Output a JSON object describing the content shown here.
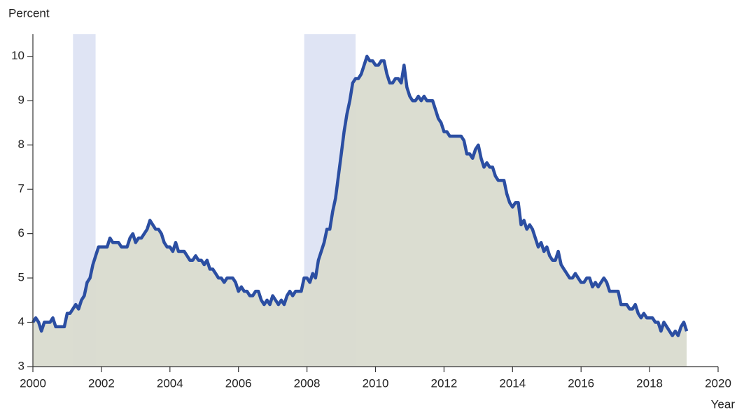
{
  "chart_data": {
    "type": "area-line",
    "ylabel": "Percent",
    "xlabel": "Year",
    "color": "#2b4ea2",
    "fill_color": "#d9dbcf",
    "shade_color": "#dfe4f4",
    "shaded_regions": [
      [
        2001.17,
        2001.83
      ],
      [
        2007.92,
        2009.42
      ]
    ],
    "xlim": [
      2000,
      2020
    ],
    "xticks": [
      2000,
      2002,
      2004,
      2006,
      2008,
      2010,
      2012,
      2014,
      2016,
      2018,
      2020
    ],
    "ylim": [
      3,
      10.5
    ],
    "yticks": [
      3,
      4,
      5,
      6,
      7,
      8,
      9,
      10
    ],
    "x": [
      2000,
      2000.083,
      2000.167,
      2000.25,
      2000.333,
      2000.417,
      2000.5,
      2000.583,
      2000.667,
      2000.75,
      2000.833,
      2000.917,
      2001,
      2001.083,
      2001.167,
      2001.25,
      2001.333,
      2001.417,
      2001.5,
      2001.583,
      2001.667,
      2001.75,
      2001.833,
      2001.917,
      2002,
      2002.083,
      2002.167,
      2002.25,
      2002.333,
      2002.417,
      2002.5,
      2002.583,
      2002.667,
      2002.75,
      2002.833,
      2002.917,
      2003,
      2003.083,
      2003.167,
      2003.25,
      2003.333,
      2003.417,
      2003.5,
      2003.583,
      2003.667,
      2003.75,
      2003.833,
      2003.917,
      2004,
      2004.083,
      2004.167,
      2004.25,
      2004.333,
      2004.417,
      2004.5,
      2004.583,
      2004.667,
      2004.75,
      2004.833,
      2004.917,
      2005,
      2005.083,
      2005.167,
      2005.25,
      2005.333,
      2005.417,
      2005.5,
      2005.583,
      2005.667,
      2005.75,
      2005.833,
      2005.917,
      2006,
      2006.083,
      2006.167,
      2006.25,
      2006.333,
      2006.417,
      2006.5,
      2006.583,
      2006.667,
      2006.75,
      2006.833,
      2006.917,
      2007,
      2007.083,
      2007.167,
      2007.25,
      2007.333,
      2007.417,
      2007.5,
      2007.583,
      2007.667,
      2007.75,
      2007.833,
      2007.917,
      2008,
      2008.083,
      2008.167,
      2008.25,
      2008.333,
      2008.417,
      2008.5,
      2008.583,
      2008.667,
      2008.75,
      2008.833,
      2008.917,
      2009,
      2009.083,
      2009.167,
      2009.25,
      2009.333,
      2009.417,
      2009.5,
      2009.583,
      2009.667,
      2009.75,
      2009.833,
      2009.917,
      2010,
      2010.083,
      2010.167,
      2010.25,
      2010.333,
      2010.417,
      2010.5,
      2010.583,
      2010.667,
      2010.75,
      2010.833,
      2010.917,
      2011,
      2011.083,
      2011.167,
      2011.25,
      2011.333,
      2011.417,
      2011.5,
      2011.583,
      2011.667,
      2011.75,
      2011.833,
      2011.917,
      2012,
      2012.083,
      2012.167,
      2012.25,
      2012.333,
      2012.417,
      2012.5,
      2012.583,
      2012.667,
      2012.75,
      2012.833,
      2012.917,
      2013,
      2013.083,
      2013.167,
      2013.25,
      2013.333,
      2013.417,
      2013.5,
      2013.583,
      2013.667,
      2013.75,
      2013.833,
      2013.917,
      2014,
      2014.083,
      2014.167,
      2014.25,
      2014.333,
      2014.417,
      2014.5,
      2014.583,
      2014.667,
      2014.75,
      2014.833,
      2014.917,
      2015,
      2015.083,
      2015.167,
      2015.25,
      2015.333,
      2015.417,
      2015.5,
      2015.583,
      2015.667,
      2015.75,
      2015.833,
      2015.917,
      2016,
      2016.083,
      2016.167,
      2016.25,
      2016.333,
      2016.417,
      2016.5,
      2016.583,
      2016.667,
      2016.75,
      2016.833,
      2016.917,
      2017,
      2017.083,
      2017.167,
      2017.25,
      2017.333,
      2017.417,
      2017.5,
      2017.583,
      2017.667,
      2017.75,
      2017.833,
      2017.917,
      2018,
      2018.083,
      2018.167,
      2018.25,
      2018.333,
      2018.417,
      2018.5,
      2018.583,
      2018.667,
      2018.75,
      2018.833,
      2018.917,
      2019,
      2019.083
    ],
    "values": [
      4.0,
      4.1,
      4.0,
      3.8,
      4.0,
      4.0,
      4.0,
      4.1,
      3.9,
      3.9,
      3.9,
      3.9,
      4.2,
      4.2,
      4.3,
      4.4,
      4.3,
      4.5,
      4.6,
      4.9,
      5.0,
      5.3,
      5.5,
      5.7,
      5.7,
      5.7,
      5.7,
      5.9,
      5.8,
      5.8,
      5.8,
      5.7,
      5.7,
      5.7,
      5.9,
      6.0,
      5.8,
      5.9,
      5.9,
      6.0,
      6.1,
      6.3,
      6.2,
      6.1,
      6.1,
      6.0,
      5.8,
      5.7,
      5.7,
      5.6,
      5.8,
      5.6,
      5.6,
      5.6,
      5.5,
      5.4,
      5.4,
      5.5,
      5.4,
      5.4,
      5.3,
      5.4,
      5.2,
      5.2,
      5.1,
      5.0,
      5.0,
      4.9,
      5.0,
      5.0,
      5.0,
      4.9,
      4.7,
      4.8,
      4.7,
      4.7,
      4.6,
      4.6,
      4.7,
      4.7,
      4.5,
      4.4,
      4.5,
      4.4,
      4.6,
      4.5,
      4.4,
      4.5,
      4.4,
      4.6,
      4.7,
      4.6,
      4.7,
      4.7,
      4.7,
      5.0,
      5.0,
      4.9,
      5.1,
      5.0,
      5.4,
      5.6,
      5.8,
      6.1,
      6.1,
      6.5,
      6.8,
      7.3,
      7.8,
      8.3,
      8.7,
      9.0,
      9.4,
      9.5,
      9.5,
      9.6,
      9.8,
      10.0,
      9.9,
      9.9,
      9.8,
      9.8,
      9.9,
      9.9,
      9.6,
      9.4,
      9.4,
      9.5,
      9.5,
      9.4,
      9.8,
      9.3,
      9.1,
      9.0,
      9.0,
      9.1,
      9.0,
      9.1,
      9.0,
      9.0,
      9.0,
      8.8,
      8.6,
      8.5,
      8.3,
      8.3,
      8.2,
      8.2,
      8.2,
      8.2,
      8.2,
      8.1,
      7.8,
      7.8,
      7.7,
      7.9,
      8.0,
      7.7,
      7.5,
      7.6,
      7.5,
      7.5,
      7.3,
      7.2,
      7.2,
      7.2,
      6.9,
      6.7,
      6.6,
      6.7,
      6.7,
      6.2,
      6.3,
      6.1,
      6.2,
      6.1,
      5.9,
      5.7,
      5.8,
      5.6,
      5.7,
      5.5,
      5.4,
      5.4,
      5.6,
      5.3,
      5.2,
      5.1,
      5.0,
      5.0,
      5.1,
      5.0,
      4.9,
      4.9,
      5.0,
      5.0,
      4.8,
      4.9,
      4.8,
      4.9,
      5.0,
      4.9,
      4.7,
      4.7,
      4.7,
      4.7,
      4.4,
      4.4,
      4.4,
      4.3,
      4.3,
      4.4,
      4.2,
      4.1,
      4.2,
      4.1,
      4.1,
      4.1,
      4.0,
      4.0,
      3.8,
      4.0,
      3.9,
      3.8,
      3.7,
      3.8,
      3.7,
      3.9,
      4.0,
      3.8
    ]
  }
}
